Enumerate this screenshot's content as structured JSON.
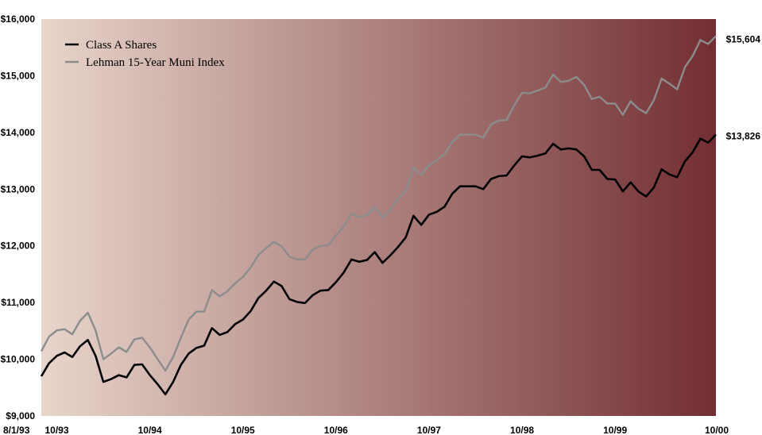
{
  "chart_data": {
    "type": "line",
    "title": "",
    "xlabel": "",
    "ylabel": "",
    "ylim": [
      9000,
      16000
    ],
    "y_ticks": [
      {
        "value": 9000,
        "label": "$9,000"
      },
      {
        "value": 10000,
        "label": "$10,000"
      },
      {
        "value": 11000,
        "label": "$11,000"
      },
      {
        "value": 12000,
        "label": "$12,000"
      },
      {
        "value": 13000,
        "label": "$13,000"
      },
      {
        "value": 14000,
        "label": "$14,000"
      },
      {
        "value": 15000,
        "label": "$15,000"
      },
      {
        "value": 16000,
        "label": "$16,000"
      }
    ],
    "x_ticks": [
      {
        "index": 0,
        "label": "8/1/93"
      },
      {
        "index": 2,
        "label": "10/93"
      },
      {
        "index": 14,
        "label": "10/94"
      },
      {
        "index": 26,
        "label": "10/95"
      },
      {
        "index": 38,
        "label": "10/96"
      },
      {
        "index": 50,
        "label": "10/97"
      },
      {
        "index": 62,
        "label": "10/98"
      },
      {
        "index": 74,
        "label": "10/99"
      },
      {
        "index": 86,
        "label": "10/00"
      }
    ],
    "legend_position": "top-left",
    "background": {
      "gradient_from": "#e8d5cb",
      "gradient_to": "#722e33"
    },
    "series": [
      {
        "name": "Class A Shares",
        "color": "#000000",
        "end_label": "$13,826",
        "values": [
          9700,
          9930,
          10060,
          10120,
          10040,
          10230,
          10340,
          10060,
          9600,
          9650,
          9720,
          9680,
          9900,
          9910,
          9720,
          9560,
          9380,
          9600,
          9900,
          10100,
          10200,
          10240,
          10550,
          10430,
          10480,
          10620,
          10700,
          10850,
          11080,
          11210,
          11370,
          11290,
          11060,
          11010,
          10990,
          11130,
          11210,
          11220,
          11360,
          11530,
          11760,
          11720,
          11750,
          11890,
          11700,
          11830,
          11980,
          12150,
          12530,
          12370,
          12550,
          12600,
          12690,
          12920,
          13050,
          13050,
          13050,
          13000,
          13180,
          13230,
          13240,
          13420,
          13580,
          13560,
          13590,
          13630,
          13800,
          13700,
          13720,
          13700,
          13580,
          13340,
          13340,
          13180,
          13170,
          12960,
          13120,
          12960,
          12870,
          13030,
          13350,
          13260,
          13210,
          13490,
          13650,
          13890,
          13820,
          13960
        ]
      },
      {
        "name": "Lehman 15-Year Muni Index",
        "color": "#8c8c8c",
        "end_label": "$15,604",
        "values": [
          10140,
          10400,
          10510,
          10530,
          10440,
          10680,
          10820,
          10510,
          10000,
          10100,
          10210,
          10130,
          10350,
          10380,
          10210,
          10000,
          9800,
          10040,
          10380,
          10700,
          10840,
          10840,
          11220,
          11110,
          11200,
          11340,
          11450,
          11620,
          11840,
          11960,
          12070,
          11990,
          11810,
          11760,
          11760,
          11930,
          12000,
          12010,
          12180,
          12340,
          12570,
          12510,
          12540,
          12680,
          12500,
          12640,
          12830,
          12970,
          13380,
          13250,
          13420,
          13510,
          13620,
          13830,
          13960,
          13960,
          13960,
          13910,
          14140,
          14210,
          14220,
          14480,
          14700,
          14690,
          14740,
          14790,
          15020,
          14890,
          14910,
          14980,
          14840,
          14590,
          14630,
          14510,
          14510,
          14310,
          14550,
          14420,
          14340,
          14570,
          14950,
          14860,
          14760,
          15150,
          15350,
          15630,
          15560,
          15700
        ]
      }
    ]
  }
}
